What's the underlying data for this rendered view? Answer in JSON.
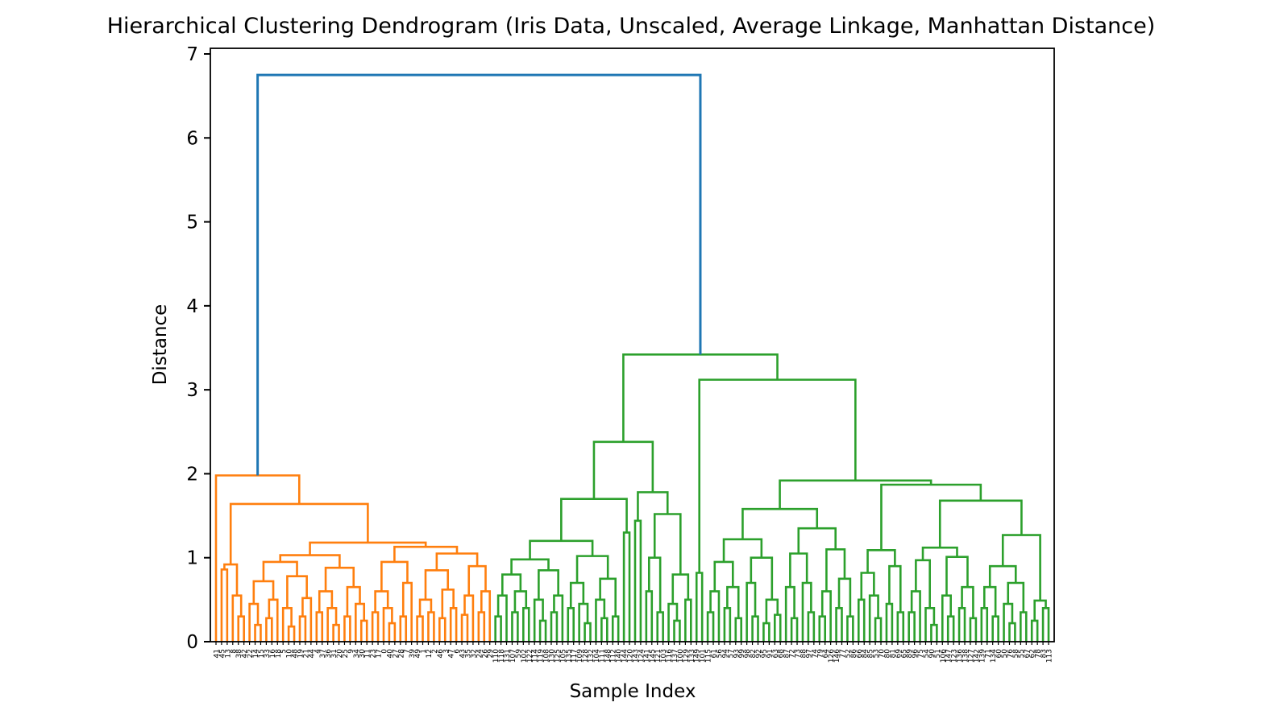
{
  "chart_data": {
    "type": "dendrogram",
    "title": "Hierarchical Clustering Dendrogram (Iris Data, Unscaled, Average Linkage, Manhattan Distance)",
    "xlabel": "Sample Index",
    "ylabel": "Distance",
    "yticks": [
      0,
      1,
      2,
      3,
      4,
      5,
      6,
      7
    ],
    "ylim": [
      0,
      7.07
    ],
    "grid": false,
    "legend": "none",
    "colors": {
      "root_link": "#1f77b4",
      "cluster_left": "#ff7f0e",
      "cluster_right": "#2ca02c",
      "axis": "#000000",
      "text": "#000000"
    },
    "root_merge_height": 6.75,
    "clusters": [
      {
        "name": "left-orange-cluster",
        "color_key": "cluster_left",
        "top_height": 1.98,
        "tree": [
          1.98,
          "41",
          [
            1.64,
            [
              0.92,
              [
                0.86,
                "45",
                "13"
              ],
              [
                0.55,
                "8",
                [
                  0.3,
                  "38",
                  "42"
                ]
              ]
            ],
            [
              1.18,
              [
                1.03,
                [
                  0.95,
                  [
                    0.72,
                    [
                      0.45,
                      "22",
                      [
                        0.2,
                        "14",
                        "15"
                      ]
                    ],
                    [
                      0.5,
                      [
                        0.28,
                        "33",
                        "16"
                      ],
                      "18"
                    ]
                  ],
                  [
                    0.78,
                    [
                      0.4,
                      "5",
                      [
                        0.18,
                        "10",
                        "48"
                      ]
                    ],
                    [
                      0.52,
                      [
                        0.3,
                        "19",
                        "21"
                      ],
                      "44"
                    ]
                  ]
                ],
                [
                  0.88,
                  [
                    0.6,
                    [
                      0.35,
                      "4",
                      "37"
                    ],
                    [
                      0.4,
                      "36",
                      [
                        0.2,
                        "31",
                        "20"
                      ]
                    ]
                  ],
                  [
                    0.65,
                    [
                      0.3,
                      "25",
                      "9"
                    ],
                    [
                      0.45,
                      "34",
                      [
                        0.25,
                        "30",
                        "11"
                      ]
                    ]
                  ]
                ]
              ],
              [
                1.13,
                [
                  0.95,
                  [
                    0.6,
                    [
                      0.35,
                      "23",
                      "17"
                    ],
                    [
                      0.4,
                      "0",
                      [
                        0.22,
                        "40",
                        "27"
                      ]
                    ]
                  ],
                  [
                    0.7,
                    [
                      0.3,
                      "28",
                      "7"
                    ],
                    "39"
                  ]
                ],
                [
                  1.05,
                  [
                    0.85,
                    [
                      0.5,
                      [
                        0.3,
                        "49",
                        "1"
                      ],
                      [
                        0.35,
                        "12",
                        "2"
                      ]
                    ],
                    [
                      0.62,
                      [
                        0.28,
                        "46",
                        "3"
                      ],
                      [
                        0.4,
                        "47",
                        "6"
                      ]
                    ]
                  ],
                  [
                    0.9,
                    [
                      0.55,
                      [
                        0.32,
                        "43",
                        "35"
                      ],
                      "32"
                    ],
                    [
                      0.6,
                      [
                        0.35,
                        "24",
                        "26"
                      ],
                      "29"
                    ]
                  ]
                ]
              ]
            ]
          ]
        ]
      },
      {
        "name": "right-green-cluster",
        "color_key": "cluster_right",
        "top_height": 3.42,
        "tree": [
          3.42,
          [
            2.38,
            [
              1.7,
              [
                1.2,
                [
                  0.98,
                  [
                    0.8,
                    [
                      0.55,
                      [
                        0.3,
                        "110",
                        "118"
                      ],
                      "131"
                    ],
                    [
                      0.6,
                      [
                        0.35,
                        "107",
                        "59"
                      ],
                      [
                        0.4,
                        "102",
                        "122"
                      ]
                    ]
                  ],
                  [
                    0.85,
                    [
                      0.5,
                      "114",
                      [
                        0.25,
                        "119",
                        "108"
                      ]
                    ],
                    [
                      0.55,
                      [
                        0.35,
                        "130",
                        "125"
                      ],
                      "105"
                    ]
                  ]
                ],
                [
                  1.02,
                  [
                    0.7,
                    [
                      0.4,
                      "135",
                      "117"
                    ],
                    [
                      0.45,
                      "109",
                      [
                        0.22,
                        "128",
                        "132"
                      ]
                    ]
                  ],
                  [
                    0.75,
                    [
                      0.5,
                      "104",
                      [
                        0.28,
                        "111",
                        "148"
                      ]
                    ],
                    [
                      0.3,
                      "112",
                      "140"
                    ]
                  ]
                ]
              ],
              [
                1.3,
                "144",
                "120"
              ]
            ],
            [
              1.78,
              [
                1.44,
                "143",
                "124"
              ],
              [
                1.52,
                [
                  1.0,
                  [
                    0.6,
                    "141",
                    "145"
                  ],
                  [
                    0.35,
                    "121",
                    "103"
                  ]
                ],
                [
                  0.8,
                  [
                    0.45,
                    "116",
                    [
                      0.25,
                      "137",
                      "100"
                    ]
                  ],
                  [
                    0.5,
                    "129",
                    "133"
                  ]
                ]
              ]
            ]
          ],
          [
            3.12,
            [
              0.82,
              "149",
              "101"
            ],
            [
              1.92,
              [
                1.58,
                [
                  1.22,
                  [
                    0.95,
                    [
                      0.6,
                      [
                        0.35,
                        "115",
                        "61"
                      ],
                      "56"
                    ],
                    [
                      0.65,
                      [
                        0.4,
                        "94",
                        "57"
                      ],
                      [
                        0.28,
                        "93",
                        "99"
                      ]
                    ]
                  ],
                  [
                    1.0,
                    [
                      0.7,
                      "98",
                      [
                        0.3,
                        "82",
                        "92"
                      ]
                    ],
                    [
                      0.5,
                      [
                        0.22,
                        "95",
                        "91"
                      ],
                      [
                        0.32,
                        "63",
                        "68"
                      ]
                    ]
                  ]
                ],
                [
                  1.35,
                  [
                    1.05,
                    [
                      0.65,
                      "87",
                      [
                        0.28,
                        "72",
                        "73"
                      ]
                    ],
                    [
                      0.7,
                      "88",
                      [
                        0.35,
                        "97",
                        "74"
                      ]
                    ]
                  ],
                  [
                    1.1,
                    [
                      0.6,
                      [
                        0.3,
                        "79",
                        "64"
                      ],
                      "126"
                    ],
                    [
                      0.75,
                      [
                        0.4,
                        "146",
                        "77"
                      ],
                      [
                        0.3,
                        "52",
                        "86"
                      ]
                    ]
                  ]
                ]
              ],
              [
                1.87,
                [
                  1.09,
                  [
                    0.82,
                    [
                      0.5,
                      "66",
                      "84"
                    ],
                    [
                      0.55,
                      "85",
                      [
                        0.28,
                        "53",
                        "70"
                      ]
                    ]
                  ],
                  [
                    0.9,
                    [
                      0.45,
                      "80",
                      "81"
                    ],
                    [
                      0.35,
                      "69",
                      "65"
                    ]
                  ]
                ],
                [
                  1.68,
                  [
                    1.12,
                    [
                      0.97,
                      [
                        0.6,
                        [
                          0.35,
                          "89",
                          "96"
                        ],
                        "75"
                      ],
                      [
                        0.4,
                        "54",
                        [
                          0.2,
                          "90",
                          "51"
                        ]
                      ]
                    ],
                    [
                      1.01,
                      [
                        0.55,
                        "106",
                        [
                          0.3,
                          "147",
                          "123"
                        ]
                      ],
                      [
                        0.65,
                        [
                          0.4,
                          "136",
                          "138"
                        ],
                        [
                          0.28,
                          "127",
                          "142"
                        ]
                      ]
                    ]
                  ],
                  [
                    1.27,
                    [
                      0.9,
                      [
                        0.65,
                        [
                          0.4,
                          "139",
                          "71"
                        ],
                        [
                          0.3,
                          "134",
                          "60"
                        ]
                      ],
                      [
                        0.7,
                        [
                          0.45,
                          "50",
                          [
                            0.22,
                            "76",
                            "58"
                          ]
                        ],
                        [
                          0.35,
                          "55",
                          "67"
                        ]
                      ]
                    ],
                    [
                      0.49,
                      [
                        0.25,
                        "62",
                        "78"
                      ],
                      [
                        0.4,
                        "83",
                        "113"
                      ]
                    ]
                  ]
                ]
              ]
            ]
          ]
        ]
      }
    ]
  }
}
